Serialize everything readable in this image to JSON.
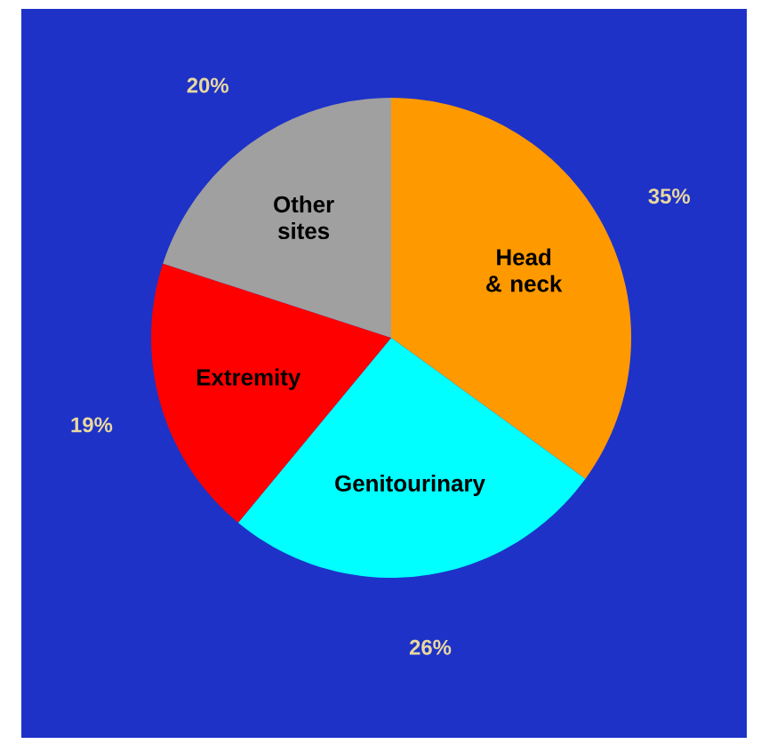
{
  "chart_data": {
    "type": "pie",
    "categories": [
      "Head & neck",
      "Genitourinary",
      "Extremity",
      "Other sites"
    ],
    "values": [
      35,
      26,
      19,
      20
    ],
    "value_labels": [
      "35%",
      "26%",
      "19%",
      "20%"
    ],
    "colors": [
      "#ff9900",
      "#00ffff",
      "#ff0000",
      "#a0a0a0"
    ]
  }
}
